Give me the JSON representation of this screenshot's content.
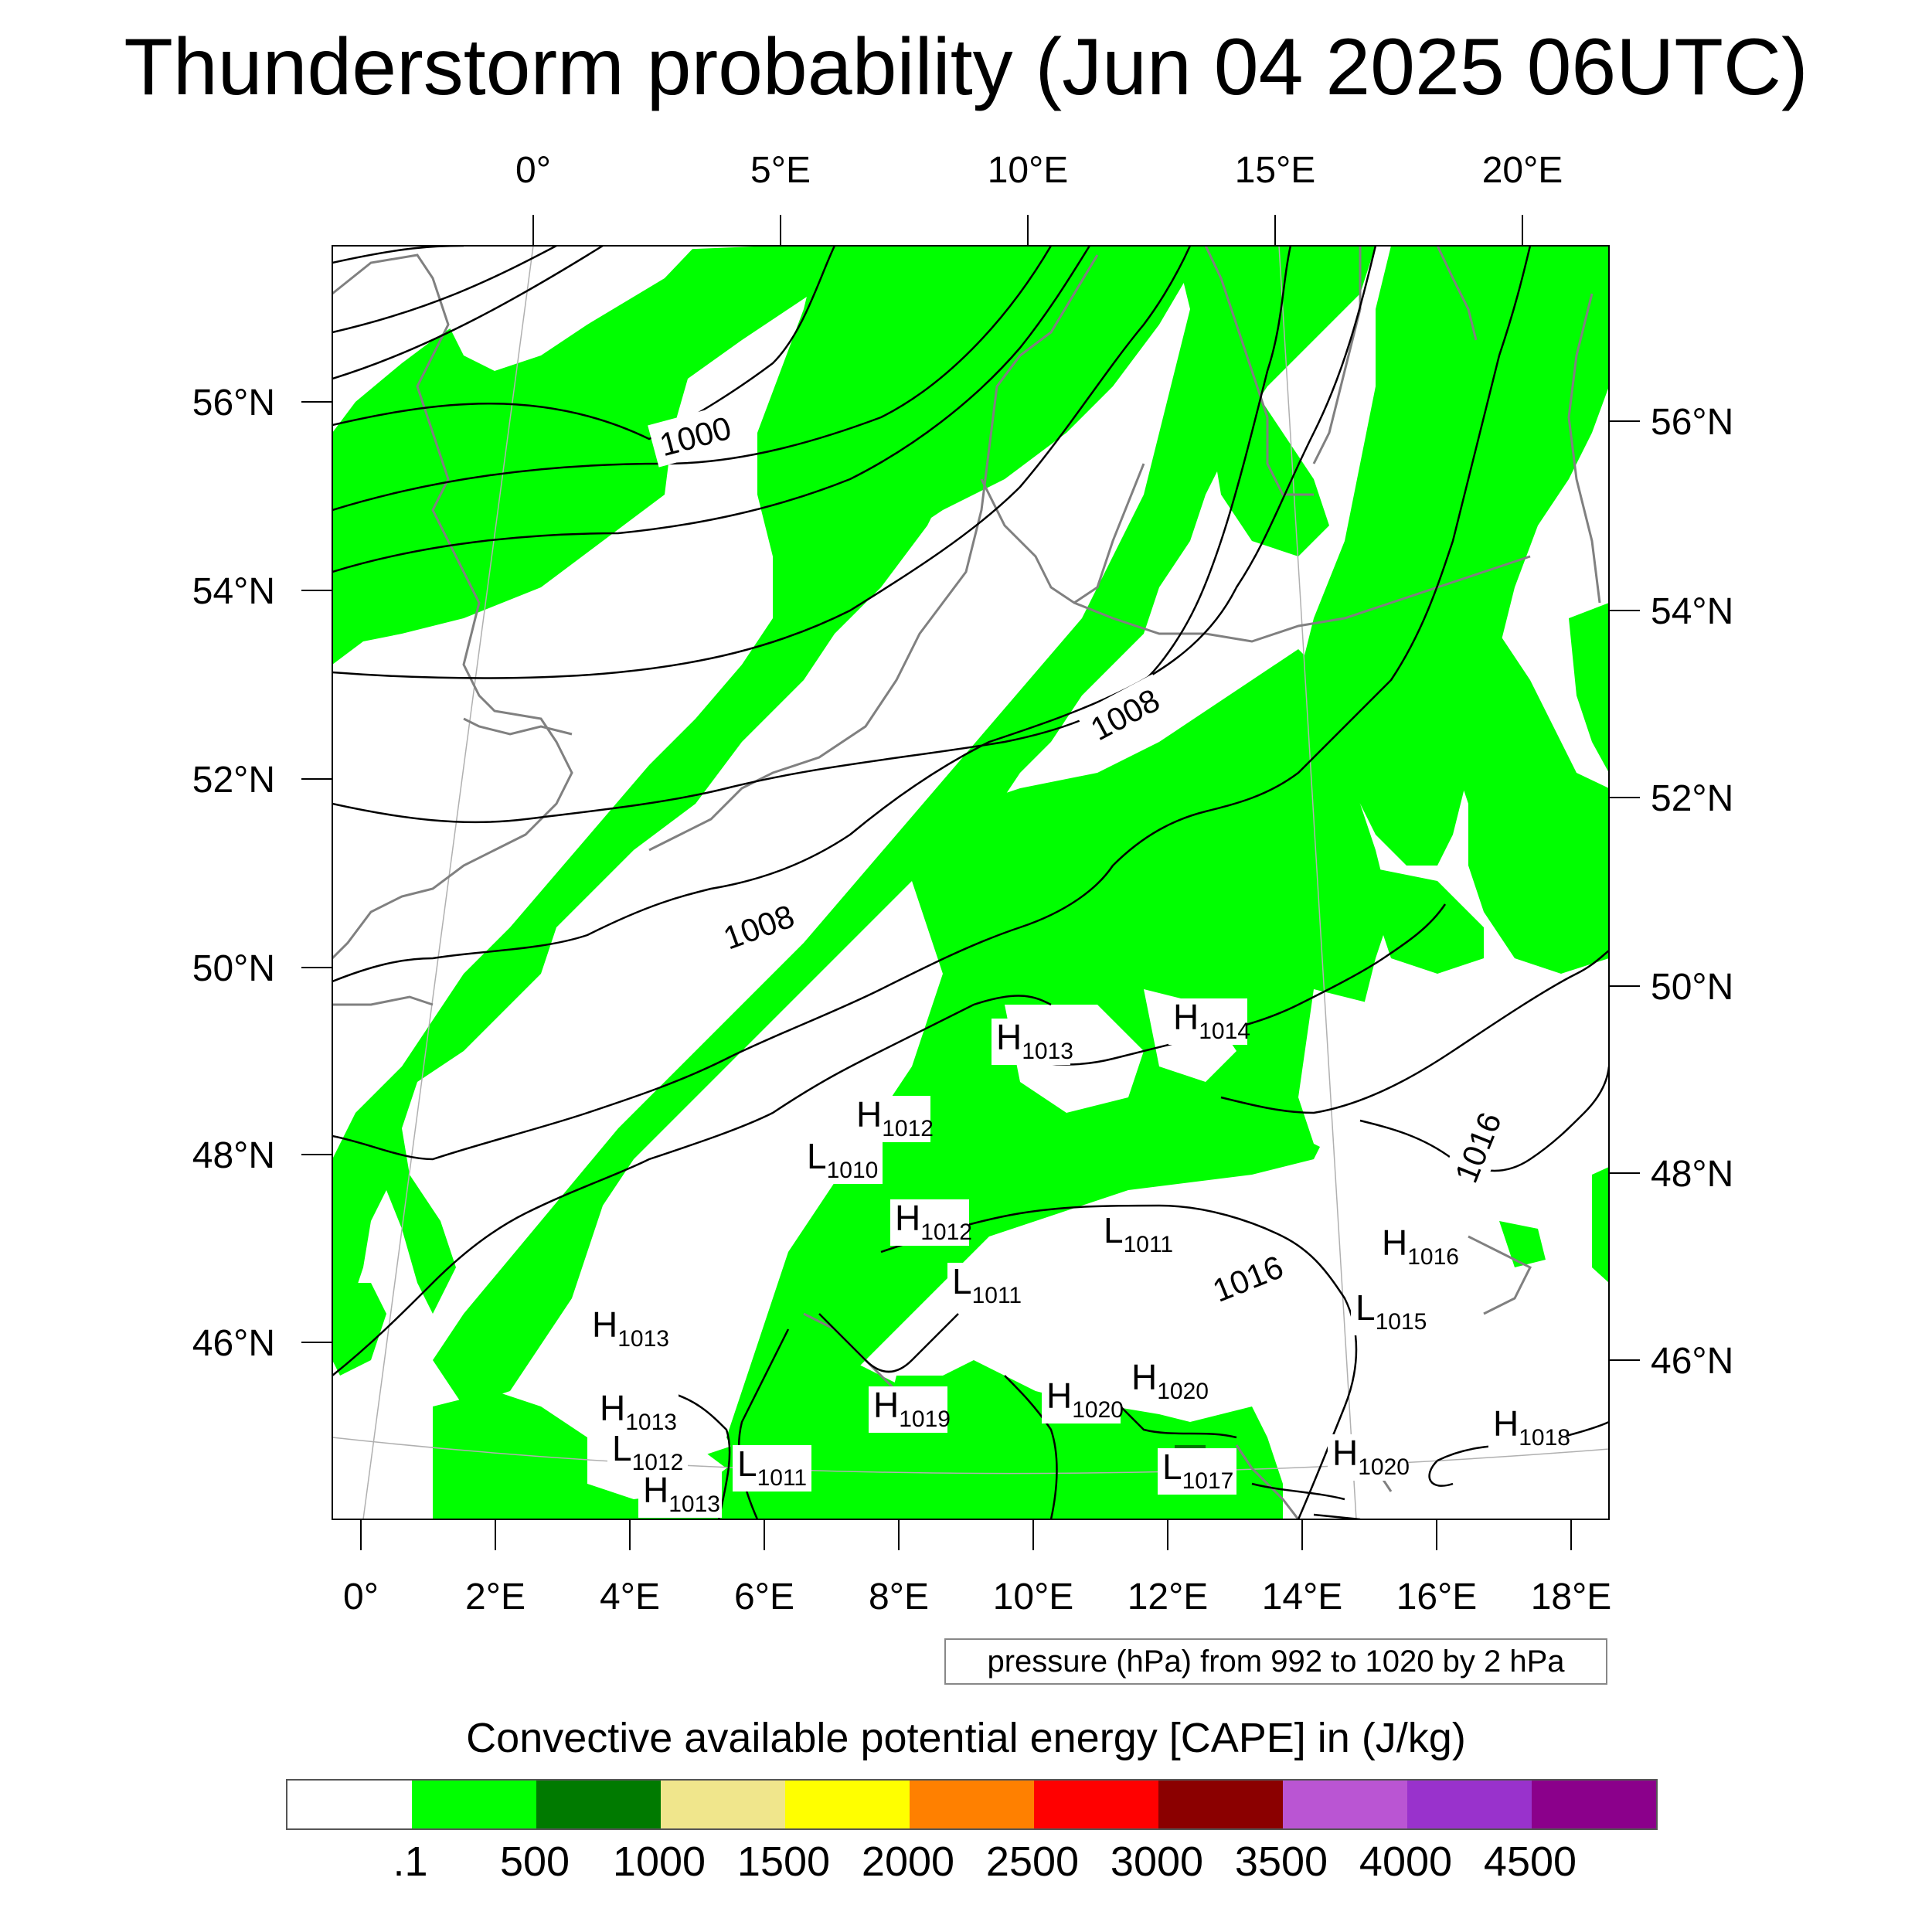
{
  "title": "Thunderstorm probability (Jun 04 2025 06UTC)",
  "top_axis_labels": [
    "0°",
    "5°E",
    "10°E",
    "15°E",
    "20°E"
  ],
  "bottom_axis_labels": [
    "0°",
    "2°E",
    "4°E",
    "6°E",
    "8°E",
    "10°E",
    "12°E",
    "14°E",
    "16°E",
    "18°E"
  ],
  "left_axis_labels": [
    "56°N",
    "54°N",
    "52°N",
    "50°N",
    "48°N",
    "46°N"
  ],
  "right_axis_labels": [
    "56°N",
    "54°N",
    "52°N",
    "50°N",
    "48°N",
    "46°N"
  ],
  "isobar_labels": [
    "1000",
    "1008",
    "1008",
    "1016",
    "1016"
  ],
  "pressure_centers": [
    {
      "type": "H",
      "value": "1013"
    },
    {
      "type": "H",
      "value": "1014"
    },
    {
      "type": "H",
      "value": "1012"
    },
    {
      "type": "L",
      "value": "1010"
    },
    {
      "type": "H",
      "value": "1012"
    },
    {
      "type": "L",
      "value": "1011"
    },
    {
      "type": "H",
      "value": "1016"
    },
    {
      "type": "L",
      "value": "1011"
    },
    {
      "type": "L",
      "value": "1015"
    },
    {
      "type": "H",
      "value": "1013"
    },
    {
      "type": "H",
      "value": "1020"
    },
    {
      "type": "H",
      "value": "1020"
    },
    {
      "type": "H",
      "value": "1013"
    },
    {
      "type": "H",
      "value": "1019"
    },
    {
      "type": "L",
      "value": "1012"
    },
    {
      "type": "L",
      "value": "1011"
    },
    {
      "type": "L",
      "value": "1017"
    },
    {
      "type": "H",
      "value": "1020"
    },
    {
      "type": "H",
      "value": "1018"
    },
    {
      "type": "H",
      "value": "1013"
    }
  ],
  "info_box": "pressure (hPa) from 992 to 1020 by 2 hPa",
  "colorbar": {
    "title": "Convective available potential energy [CAPE] in (J/kg)",
    "colors": [
      "#ffffff",
      "#00ff00",
      "#007a00",
      "#f0e68c",
      "#ffff00",
      "#ff8000",
      "#ff0000",
      "#8b0000",
      "#ba55d3",
      "#9932cc",
      "#8b008b"
    ],
    "labels": [
      ".1",
      "500",
      "1000",
      "1500",
      "2000",
      "2500",
      "3000",
      "3500",
      "4000",
      "4500"
    ]
  },
  "colors": {
    "cape_green": "#00ff00",
    "coast": "#808080",
    "isobar": "#000000"
  }
}
